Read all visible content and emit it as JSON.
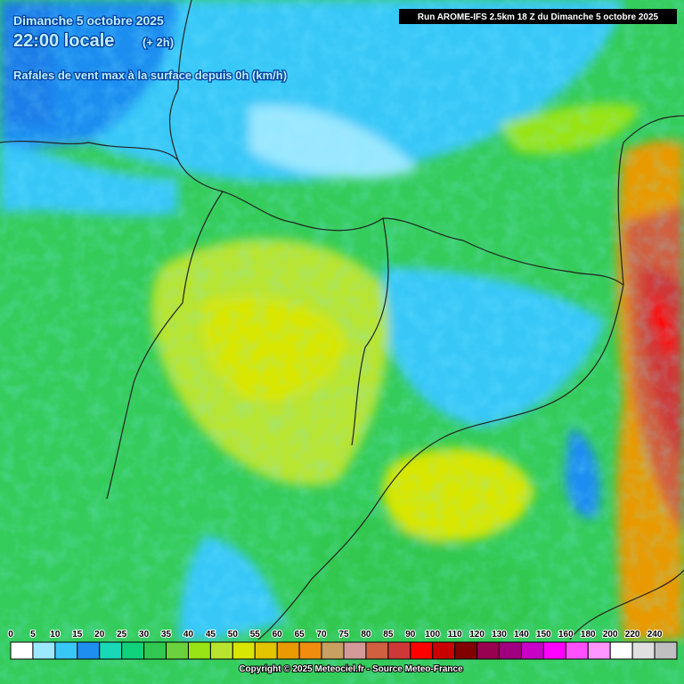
{
  "header": {
    "date": "Dimanche 5 octobre 2025",
    "time": "22:00 locale",
    "offset": "(+ 2h)",
    "subtitle": "Rafales de vent max à la surface depuis 0h (km/h)"
  },
  "run_info": "Run AROME-IFS 2.5km 18 Z du Dimanche 5 octobre 2025",
  "legend": {
    "labels": [
      0,
      5,
      10,
      15,
      20,
      25,
      30,
      35,
      40,
      45,
      50,
      55,
      60,
      65,
      70,
      75,
      80,
      85,
      90,
      100,
      110,
      120,
      130,
      140,
      150,
      160,
      180,
      200,
      220,
      240
    ],
    "colors": [
      "#ffffff",
      "#9be8ff",
      "#38c8f8",
      "#1e8ef0",
      "#18d8b8",
      "#10d27c",
      "#30c850",
      "#6ad23c",
      "#98e414",
      "#b8e430",
      "#d8e600",
      "#e2c400",
      "#e89a00",
      "#f08c10",
      "#c8a060",
      "#d49a9a",
      "#d06040",
      "#d03838",
      "#ff0000",
      "#c80000",
      "#820000",
      "#980050",
      "#a00080",
      "#c800c8",
      "#ff00ff",
      "#ff50ff",
      "#ff96ff",
      "#ffffff",
      "#e0e0e0",
      "#c0c0c0"
    ]
  },
  "copyright": "Copyright © 2025 Meteociel.fr - Source Meteo-France"
}
